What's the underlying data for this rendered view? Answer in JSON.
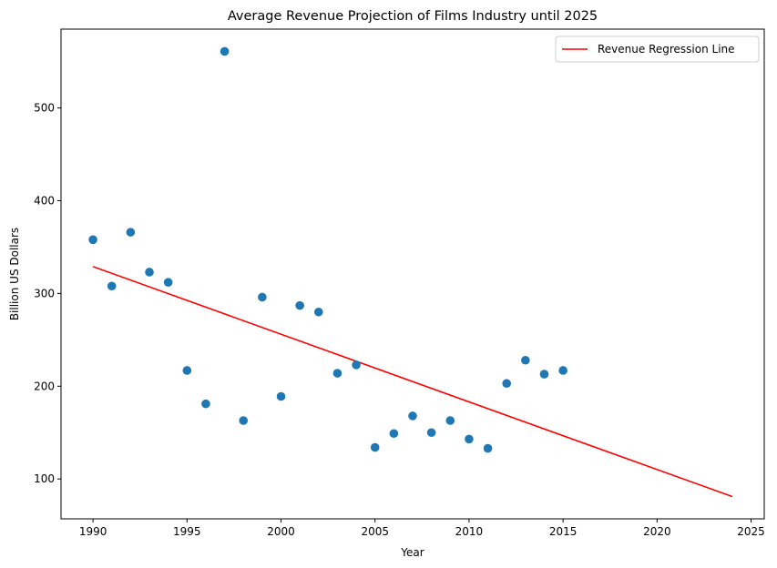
{
  "chart_data": {
    "type": "scatter",
    "title": "Average Revenue Projection of Films Industry until 2025",
    "xlabel": "Year",
    "ylabel": "Billion US Dollars",
    "xlim": [
      1988.3,
      2025.7
    ],
    "ylim": [
      57,
      585
    ],
    "xticks": [
      1990,
      1995,
      2000,
      2005,
      2010,
      2015,
      2020,
      2025
    ],
    "yticks": [
      100,
      200,
      300,
      400,
      500
    ],
    "grid": false,
    "legend_position": "top-right",
    "scatter_color": "#1f77b4",
    "line_color": "#ff0000",
    "points": [
      {
        "x": 1990,
        "y": 358
      },
      {
        "x": 1991,
        "y": 308
      },
      {
        "x": 1992,
        "y": 366
      },
      {
        "x": 1993,
        "y": 323
      },
      {
        "x": 1994,
        "y": 312
      },
      {
        "x": 1995,
        "y": 217
      },
      {
        "x": 1996,
        "y": 181
      },
      {
        "x": 1997,
        "y": 561
      },
      {
        "x": 1998,
        "y": 163
      },
      {
        "x": 1999,
        "y": 296
      },
      {
        "x": 2000,
        "y": 189
      },
      {
        "x": 2001,
        "y": 287
      },
      {
        "x": 2002,
        "y": 280
      },
      {
        "x": 2003,
        "y": 214
      },
      {
        "x": 2004,
        "y": 223
      },
      {
        "x": 2005,
        "y": 134
      },
      {
        "x": 2006,
        "y": 149
      },
      {
        "x": 2007,
        "y": 168
      },
      {
        "x": 2008,
        "y": 150
      },
      {
        "x": 2009,
        "y": 163
      },
      {
        "x": 2010,
        "y": 143
      },
      {
        "x": 2011,
        "y": 133
      },
      {
        "x": 2012,
        "y": 203
      },
      {
        "x": 2013,
        "y": 228
      },
      {
        "x": 2014,
        "y": 213
      },
      {
        "x": 2015,
        "y": 217
      }
    ],
    "regression_line": {
      "name": "Revenue Regression Line",
      "x": [
        1990,
        2024
      ],
      "y": [
        329,
        81
      ]
    }
  }
}
